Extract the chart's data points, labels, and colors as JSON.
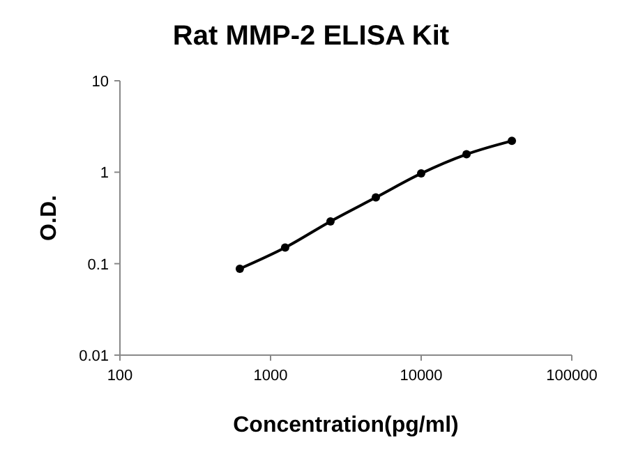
{
  "chart_data": {
    "type": "line",
    "title": "Rat MMP-2 ELISA Kit",
    "xlabel": "Concentration(pg/ml)",
    "ylabel": "O.D.",
    "x": [
      625,
      1250,
      2500,
      5000,
      10000,
      20000,
      40000
    ],
    "series": [
      {
        "color": "#000000",
        "values": [
          0.088,
          0.15,
          0.29,
          0.53,
          0.97,
          1.57,
          2.2
        ]
      }
    ],
    "log": "xy",
    "xlim": [
      100,
      100000
    ],
    "xticks": [
      100,
      1000,
      10000,
      100000
    ],
    "ylim": [
      0.01,
      10
    ],
    "yticks": [
      0.01,
      0.1,
      1,
      10
    ],
    "marker": "circle",
    "line_style": "solid"
  }
}
